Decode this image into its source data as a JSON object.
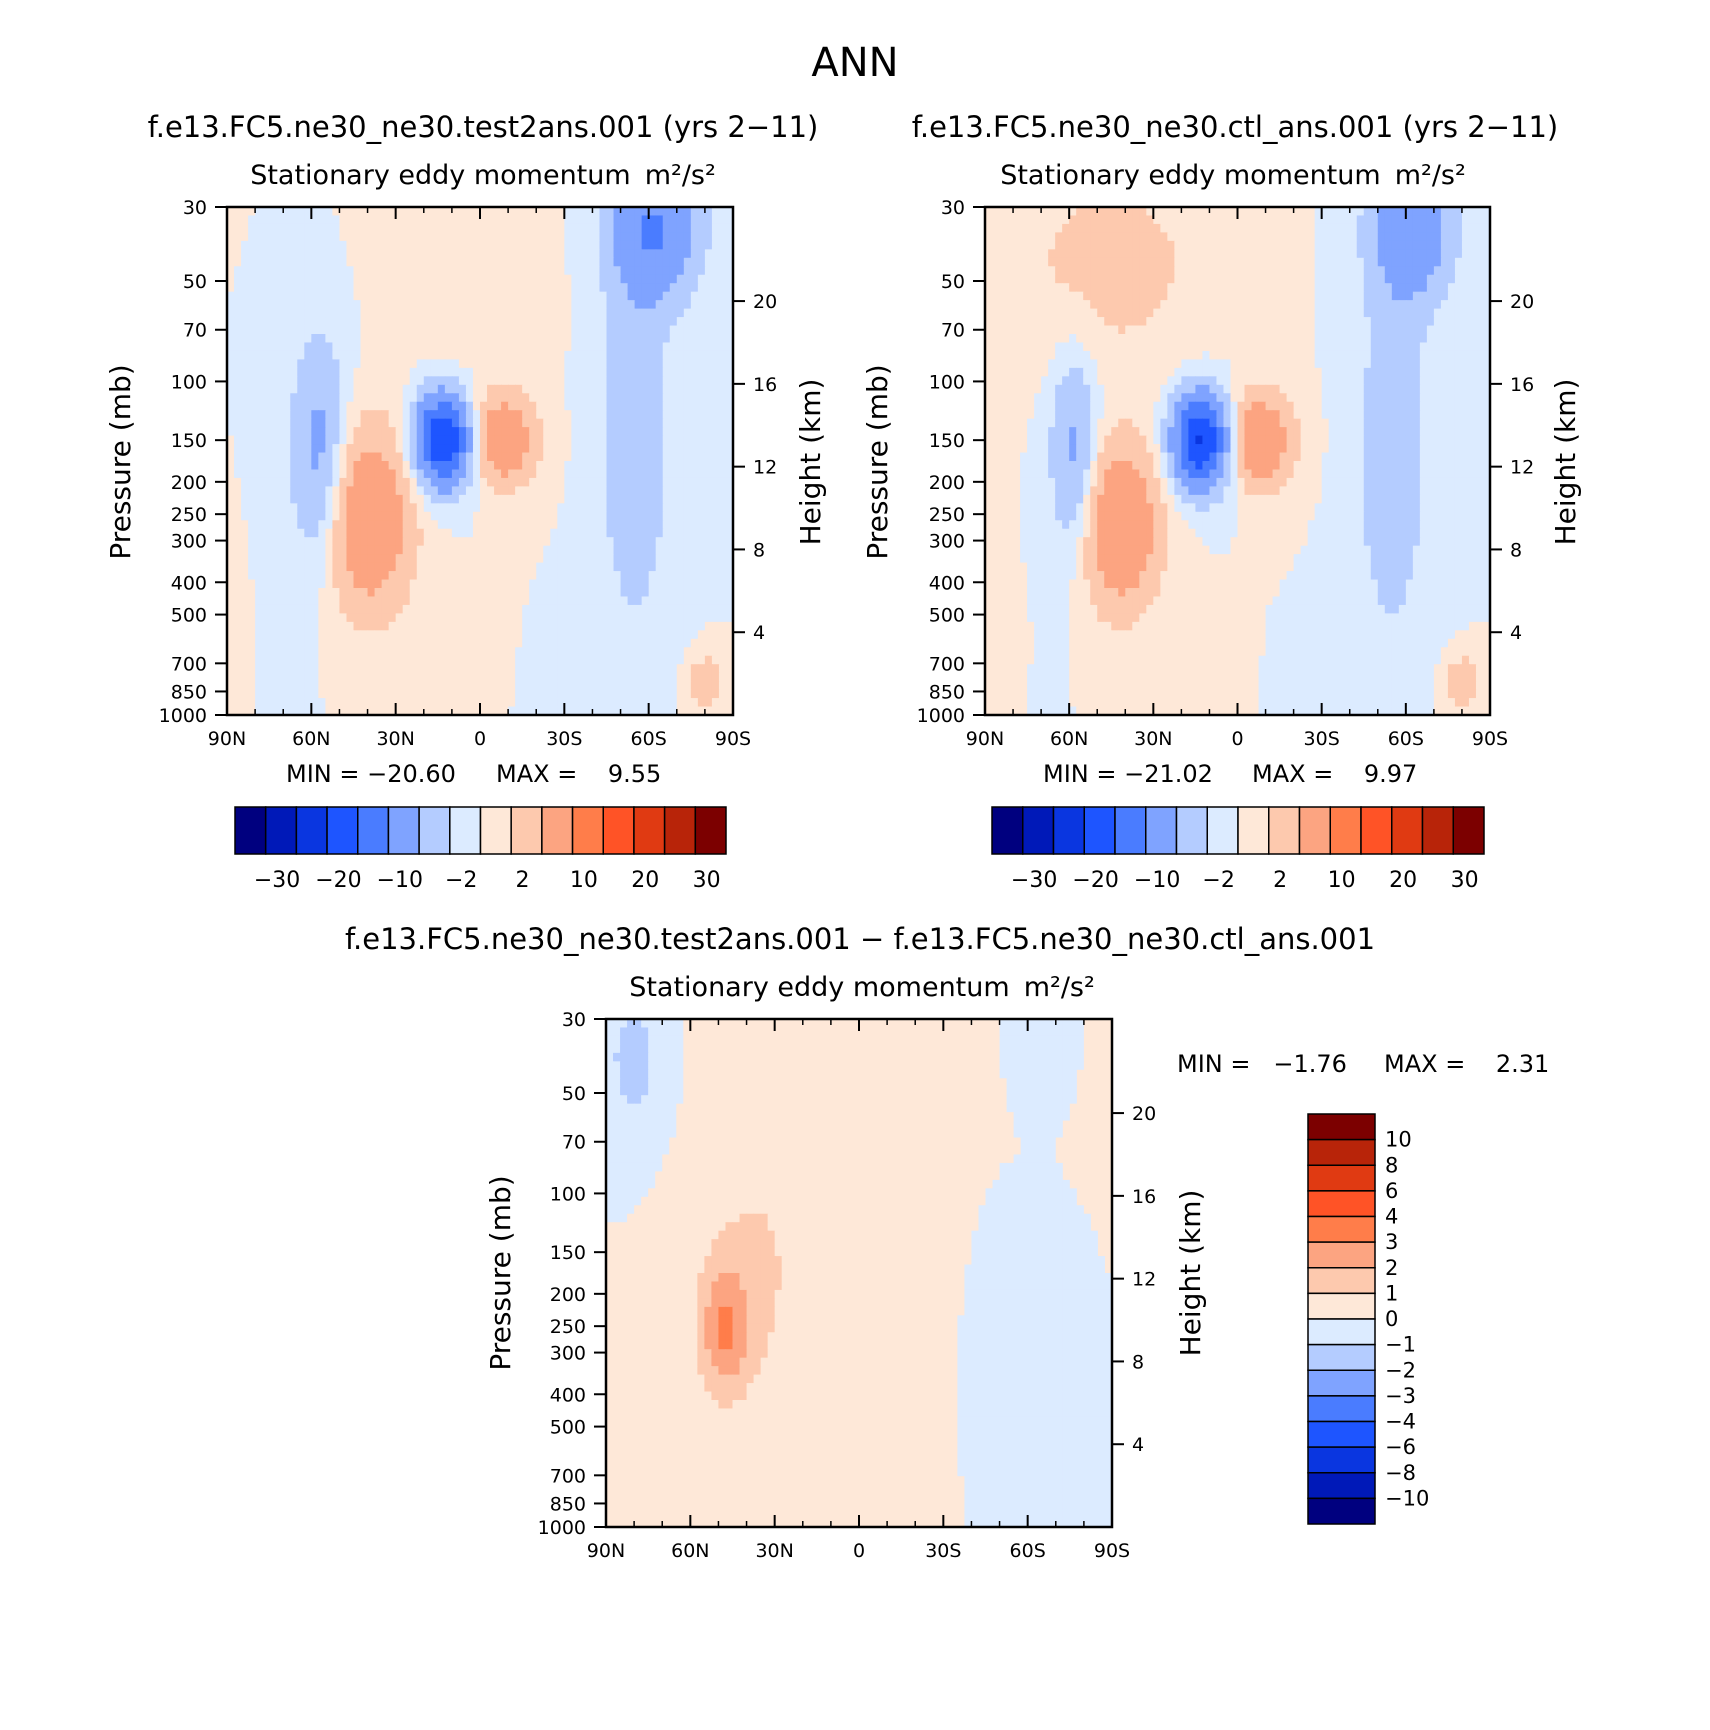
{
  "page": {
    "title": "ANN"
  },
  "palettes": {
    "main": [
      "#00007f",
      "#0019b8",
      "#0a36e0",
      "#1e55ff",
      "#4a7cff",
      "#7fa3ff",
      "#b4ccff",
      "#dcebff",
      "#fee8d8",
      "#fdc9ae",
      "#fca481",
      "#ff7d4a",
      "#ff5326",
      "#e03a12",
      "#b82409",
      "#7c0000"
    ],
    "diff": [
      "#00007f",
      "#0019b8",
      "#0a36e0",
      "#1e55ff",
      "#4a7cff",
      "#7fa3ff",
      "#b4ccff",
      "#dcebff",
      "#fee8d8",
      "#fdc9ae",
      "#fca481",
      "#ff7d4a",
      "#ff5326",
      "#e03a12",
      "#b82409",
      "#7c0000"
    ]
  },
  "chart_data": [
    {
      "id": "panel1",
      "type": "heatmap",
      "title": "f.e13.FC5.ne30_ne30.test2ans.001 (yrs 2−11)",
      "subtitle": "Stationary eddy momentum",
      "units": "m²/s²",
      "xlabel": "",
      "ylabel": "Pressure (mb)",
      "y2label": "Height (km)",
      "xticks": [
        "90N",
        "60N",
        "30N",
        "0",
        "30S",
        "60S",
        "90S"
      ],
      "xrange": [
        90,
        -90
      ],
      "pressure_ticks": [
        30,
        50,
        70,
        100,
        150,
        200,
        250,
        300,
        400,
        500,
        700,
        850,
        1000
      ],
      "height_ticks": [
        20,
        16,
        12,
        8,
        4
      ],
      "min_label": "MIN = −20.60",
      "max_label": "MAX =    9.55",
      "min": -20.6,
      "max": 9.55,
      "colorbar_labels": [
        "−30",
        "−20",
        "−10",
        "−2",
        "2",
        "10",
        "20",
        "30"
      ],
      "levels": [
        -35,
        -30,
        -25,
        -20,
        -15,
        -10,
        -5,
        -2,
        0,
        2,
        5,
        10,
        15,
        20,
        25,
        30,
        35
      ],
      "features": [
        {
          "lat": 57,
          "p": 170,
          "amp": -7,
          "wlat": 7,
          "wlogp": 0.55
        },
        {
          "lat": 40,
          "p": 260,
          "amp": 9.5,
          "wlat": 11,
          "wlogp": 0.45
        },
        {
          "lat": 13,
          "p": 150,
          "amp": -20.6,
          "wlat": 7,
          "wlogp": 0.22
        },
        {
          "lat": -8,
          "p": 150,
          "amp": 9.0,
          "wlat": 8,
          "wlogp": 0.22
        },
        {
          "lat": -62,
          "p": 35,
          "amp": -10,
          "wlat": 11,
          "wlogp": 0.35
        },
        {
          "lat": -55,
          "p": 160,
          "amp": -4,
          "wlat": 9,
          "wlogp": 0.9
        },
        {
          "lat": 5,
          "p": 40,
          "amp": 1.5,
          "wlat": 18,
          "wlogp": 0.6
        },
        {
          "lat": -80,
          "p": 800,
          "amp": 5,
          "wlat": 4,
          "wlogp": 0.12
        }
      ]
    },
    {
      "id": "panel2",
      "type": "heatmap",
      "title": "f.e13.FC5.ne30_ne30.ctl_ans.001 (yrs 2−11)",
      "subtitle": "Stationary eddy momentum",
      "units": "m²/s²",
      "xlabel": "",
      "ylabel": "Pressure (mb)",
      "y2label": "Height (km)",
      "xticks": [
        "90N",
        "60N",
        "30N",
        "0",
        "30S",
        "60S",
        "90S"
      ],
      "xrange": [
        90,
        -90
      ],
      "pressure_ticks": [
        30,
        50,
        70,
        100,
        150,
        200,
        250,
        300,
        400,
        500,
        700,
        850,
        1000
      ],
      "height_ticks": [
        20,
        16,
        12,
        8,
        4
      ],
      "min_label": "MIN = −21.02",
      "max_label": "MAX =    9.97",
      "min": -21.02,
      "max": 9.97,
      "colorbar_labels": [
        "−30",
        "−20",
        "−10",
        "−2",
        "2",
        "10",
        "20",
        "30"
      ],
      "levels": [
        -35,
        -30,
        -25,
        -20,
        -15,
        -10,
        -5,
        -2,
        0,
        2,
        5,
        10,
        15,
        20,
        25,
        30,
        35
      ],
      "features": [
        {
          "lat": 58,
          "p": 170,
          "amp": -6.5,
          "wlat": 6,
          "wlogp": 0.5
        },
        {
          "lat": 42,
          "p": 270,
          "amp": 9.97,
          "wlat": 10,
          "wlogp": 0.4
        },
        {
          "lat": 13,
          "p": 150,
          "amp": -21.02,
          "wlat": 7,
          "wlogp": 0.22
        },
        {
          "lat": -8,
          "p": 150,
          "amp": 9.5,
          "wlat": 8,
          "wlogp": 0.22
        },
        {
          "lat": -62,
          "p": 35,
          "amp": -9,
          "wlat": 10,
          "wlogp": 0.35
        },
        {
          "lat": -55,
          "p": 170,
          "amp": -4,
          "wlat": 9,
          "wlogp": 0.9
        },
        {
          "lat": 45,
          "p": 45,
          "amp": 3,
          "wlat": 25,
          "wlogp": 0.5
        },
        {
          "lat": -80,
          "p": 800,
          "amp": 5,
          "wlat": 4,
          "wlogp": 0.12
        }
      ]
    },
    {
      "id": "panel3",
      "type": "heatmap",
      "title": "f.e13.FC5.ne30_ne30.test2ans.001 − f.e13.FC5.ne30_ne30.ctl_ans.001",
      "subtitle": "Stationary eddy momentum",
      "units": "m²/s²",
      "xlabel": "",
      "ylabel": "Pressure (mb)",
      "y2label": "Height (km)",
      "xticks": [
        "90N",
        "60N",
        "30N",
        "0",
        "30S",
        "60S",
        "90S"
      ],
      "xrange": [
        90,
        -90
      ],
      "pressure_ticks": [
        30,
        50,
        70,
        100,
        150,
        200,
        250,
        300,
        400,
        500,
        700,
        850,
        1000
      ],
      "height_ticks": [
        20,
        16,
        12,
        8,
        4
      ],
      "min_label": "MIN =   −1.76",
      "max_label": "MAX =    2.31",
      "min": -1.76,
      "max": 2.31,
      "colorbar_labels": [
        "10",
        "8",
        "6",
        "4",
        "3",
        "2",
        "1",
        "0",
        "−1",
        "−2",
        "−3",
        "−4",
        "−6",
        "−8",
        "−10"
      ],
      "levels": [
        -12,
        -10,
        -8,
        -6,
        -4,
        -3,
        -2,
        -1,
        0,
        1,
        2,
        3,
        4,
        6,
        8,
        10,
        12
      ],
      "features": [
        {
          "lat": 80,
          "p": 40,
          "amp": -1.5,
          "wlat": 7,
          "wlogp": 0.35
        },
        {
          "lat": 48,
          "p": 260,
          "amp": 2.31,
          "wlat": 6,
          "wlogp": 0.3
        },
        {
          "lat": 40,
          "p": 200,
          "amp": 1.2,
          "wlat": 14,
          "wlogp": 0.6
        },
        {
          "lat": 5,
          "p": 60,
          "amp": 0.8,
          "wlat": 25,
          "wlogp": 0.7
        },
        {
          "lat": -20,
          "p": 200,
          "amp": 0.7,
          "wlat": 10,
          "wlogp": 1.0
        },
        {
          "lat": -62,
          "p": 35,
          "amp": -1.0,
          "wlat": 5,
          "wlogp": 0.25
        },
        {
          "lat": -50,
          "p": 300,
          "amp": -0.6,
          "wlat": 10,
          "wlogp": 0.6
        }
      ]
    }
  ]
}
